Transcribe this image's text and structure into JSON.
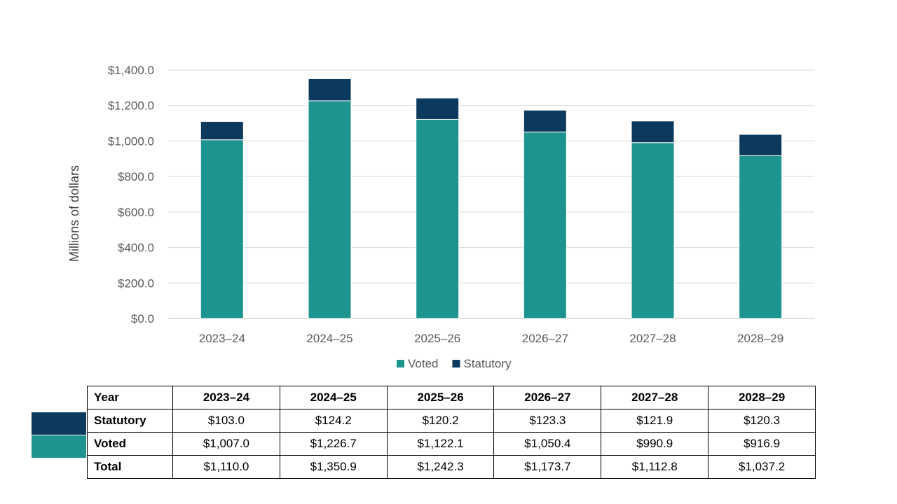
{
  "chart_data": {
    "type": "bar",
    "stacked": true,
    "categories": [
      "2023–24",
      "2024–25",
      "2025–26",
      "2026–27",
      "2027–28",
      "2028–29"
    ],
    "series": [
      {
        "name": "Voted",
        "color": "#1e9490",
        "values": [
          1007.0,
          1226.7,
          1122.1,
          1050.4,
          990.9,
          916.9
        ]
      },
      {
        "name": "Statutory",
        "color": "#0c3a5e",
        "values": [
          103.0,
          124.2,
          120.2,
          123.3,
          121.9,
          120.3
        ]
      }
    ],
    "ylabel": "Millions of dollars",
    "xlabel": "",
    "ylim": [
      0,
      1400
    ],
    "yticks": [
      "$0.0",
      "$200.0",
      "$400.0",
      "$600.0",
      "$800.0",
      "$1,000.0",
      "$1,200.0",
      "$1,400.0"
    ],
    "grid": true,
    "legend": "bottom"
  },
  "table": {
    "header_label": "Year",
    "years": [
      "2023–24",
      "2024–25",
      "2025–26",
      "2026–27",
      "2027–28",
      "2028–29"
    ],
    "rows": [
      {
        "label": "Statutory",
        "values": [
          "$103.0",
          "$124.2",
          "$120.2",
          "$123.3",
          "$121.9",
          "$120.3"
        ]
      },
      {
        "label": "Voted",
        "values": [
          "$1,007.0",
          "$1,226.7",
          "$1,122.1",
          "$1,050.4",
          "$990.9",
          "$916.9"
        ]
      },
      {
        "label": "Total",
        "values": [
          "$1,110.0",
          "$1,350.9",
          "$1,242.3",
          "$1,173.7",
          "$1,112.8",
          "$1,037.2"
        ]
      }
    ]
  }
}
